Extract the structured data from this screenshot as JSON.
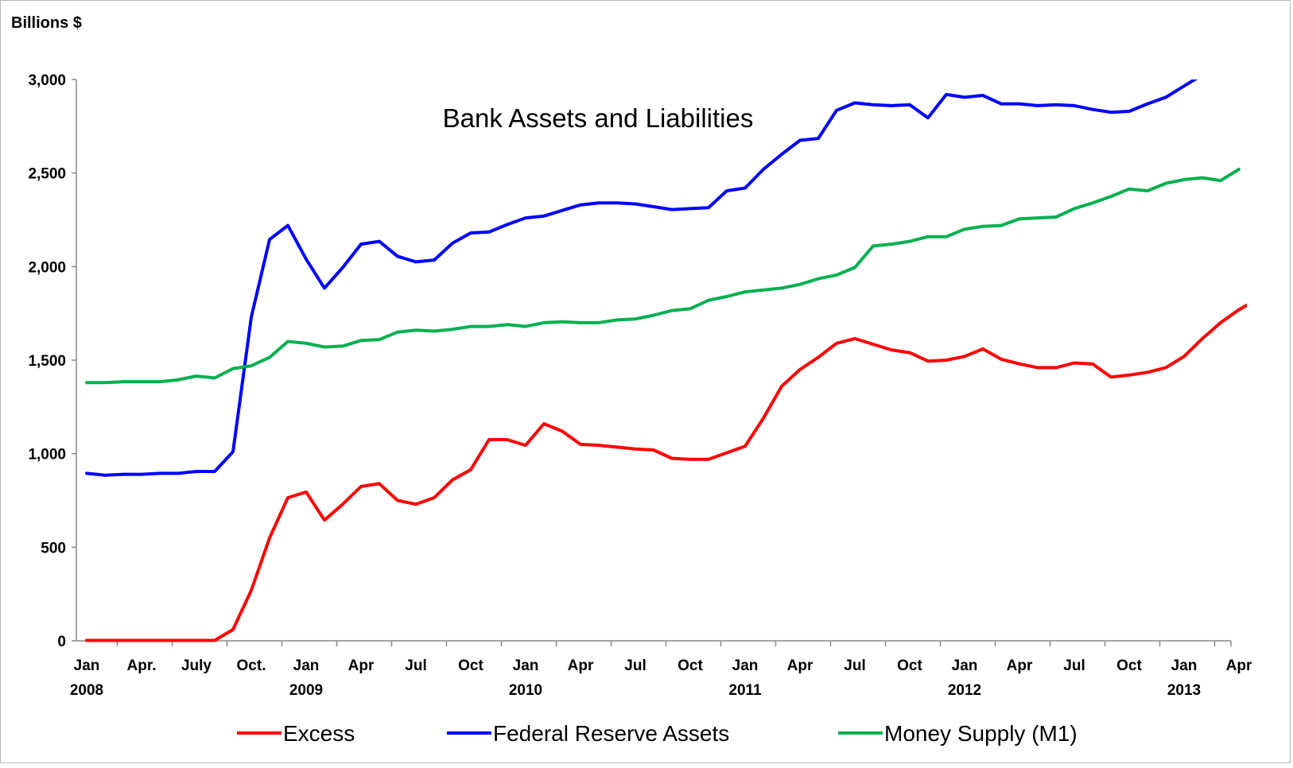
{
  "chart_data": {
    "type": "line",
    "title": "Bank Assets and Liabilities",
    "ylabel": "Billions $",
    "xlabel": "",
    "ylim": [
      0,
      3000
    ],
    "yticks": [
      "0",
      "500",
      "1,000",
      "1,500",
      "2,000",
      "2,500",
      "3,000"
    ],
    "ytick_values": [
      0,
      500,
      1000,
      1500,
      2000,
      2500,
      3000
    ],
    "x_start": "2008-01",
    "x_end": "2013-06",
    "x_tick_labels": [
      {
        "month": "Jan",
        "year": "2008"
      },
      {
        "month": "Apr.",
        "year": ""
      },
      {
        "month": "July",
        "year": ""
      },
      {
        "month": "Oct.",
        "year": ""
      },
      {
        "month": "Jan",
        "year": "2009"
      },
      {
        "month": "Apr",
        "year": ""
      },
      {
        "month": "Jul",
        "year": ""
      },
      {
        "month": "Oct",
        "year": ""
      },
      {
        "month": "Jan",
        "year": "2010"
      },
      {
        "month": "Apr",
        "year": ""
      },
      {
        "month": "Jul",
        "year": ""
      },
      {
        "month": "Oct",
        "year": ""
      },
      {
        "month": "Jan",
        "year": "2011"
      },
      {
        "month": "Apr",
        "year": ""
      },
      {
        "month": "Jul",
        "year": ""
      },
      {
        "month": "Oct",
        "year": ""
      },
      {
        "month": "Jan",
        "year": "2012"
      },
      {
        "month": "Apr",
        "year": ""
      },
      {
        "month": "Jul",
        "year": ""
      },
      {
        "month": "Oct",
        "year": ""
      },
      {
        "month": "Jan",
        "year": "2013"
      },
      {
        "month": "Apr",
        "year": ""
      }
    ],
    "grid": false,
    "legend_position": "bottom",
    "series": [
      {
        "name": "Excess",
        "color": "#ff0000",
        "values": [
          2,
          2,
          2,
          2,
          2,
          2,
          2,
          2,
          60,
          270,
          550,
          765,
          795,
          645,
          730,
          825,
          840,
          750,
          730,
          765,
          860,
          915,
          1075,
          1075,
          1045,
          1160,
          1120,
          1050,
          1045,
          1035,
          1025,
          1020,
          975,
          970,
          970,
          1005,
          1040,
          1190,
          1360,
          1450,
          1515,
          1590,
          1615,
          1585,
          1555,
          1540,
          1495,
          1500,
          1520,
          1560,
          1505,
          1480,
          1460,
          1460,
          1485,
          1480,
          1410,
          1420,
          1435,
          1460,
          1520,
          1615,
          1700,
          1770,
          1825
        ]
      },
      {
        "name": "Federal Reserve Assets",
        "color": "#0000ff",
        "values": [
          895,
          885,
          890,
          890,
          895,
          895,
          905,
          905,
          1010,
          1730,
          2145,
          2220,
          2040,
          1885,
          1995,
          2120,
          2135,
          2055,
          2025,
          2035,
          2125,
          2180,
          2185,
          2225,
          2260,
          2270,
          2300,
          2330,
          2340,
          2340,
          2335,
          2320,
          2305,
          2310,
          2315,
          2405,
          2420,
          2520,
          2600,
          2675,
          2685,
          2835,
          2875,
          2865,
          2860,
          2865,
          2795,
          2920,
          2905,
          2915,
          2870,
          2870,
          2860,
          2865,
          2860,
          2840,
          2825,
          2830,
          2870,
          2905,
          2965,
          3025
        ]
      },
      {
        "name": "Money Supply (M1)",
        "color": "#00b050",
        "values": [
          1380,
          1380,
          1385,
          1385,
          1385,
          1395,
          1415,
          1405,
          1455,
          1470,
          1515,
          1600,
          1590,
          1570,
          1575,
          1605,
          1610,
          1650,
          1660,
          1655,
          1665,
          1680,
          1680,
          1690,
          1680,
          1700,
          1705,
          1700,
          1700,
          1715,
          1720,
          1740,
          1765,
          1775,
          1820,
          1840,
          1865,
          1875,
          1885,
          1905,
          1935,
          1955,
          1995,
          2110,
          2120,
          2135,
          2160,
          2160,
          2200,
          2215,
          2220,
          2255,
          2260,
          2265,
          2310,
          2340,
          2375,
          2415,
          2405,
          2445,
          2465,
          2475,
          2460,
          2520
        ]
      }
    ]
  }
}
